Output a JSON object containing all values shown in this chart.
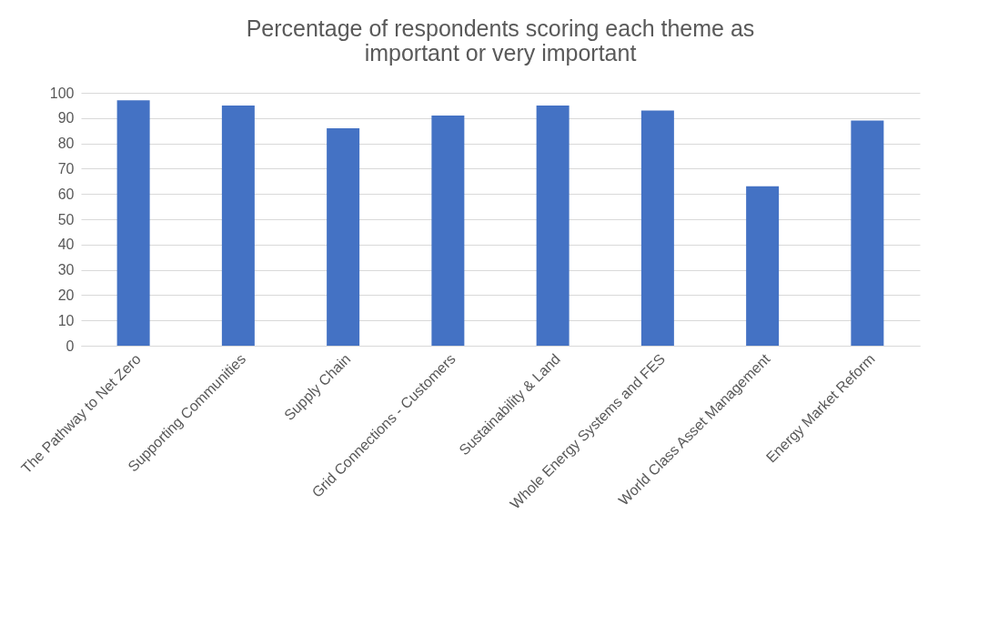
{
  "chart_data": {
    "type": "bar",
    "title": "Percentage of respondents scoring each theme as important or very important",
    "categories": [
      "The Pathway to Net Zero",
      "Supporting Communities",
      "Supply Chain",
      "Grid Connections - Customers",
      "Sustainability & Land",
      "Whole Energy Systems and FES",
      "World Class Asset Management",
      "Energy Market Reform"
    ],
    "values": [
      97,
      95,
      86,
      91,
      95,
      93,
      63,
      89
    ],
    "color": "#4472c4",
    "ylim": [
      0,
      100
    ],
    "yticks": [
      0,
      10,
      20,
      30,
      40,
      50,
      60,
      70,
      80,
      90,
      100
    ],
    "grid": "y"
  }
}
